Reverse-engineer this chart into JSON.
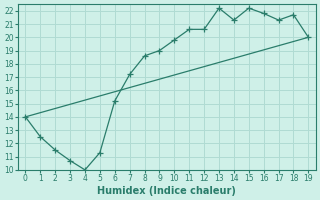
{
  "xlabel": "Humidex (Indice chaleur)",
  "line1_x": [
    0,
    1,
    2,
    3,
    4,
    5,
    6,
    7,
    8,
    9,
    10,
    11,
    12,
    13,
    14,
    15,
    16,
    17,
    18,
    19
  ],
  "line1_y": [
    14,
    12.5,
    11.5,
    10.7,
    10.0,
    11.3,
    15.2,
    17.2,
    18.6,
    19.0,
    19.8,
    20.6,
    20.6,
    22.2,
    21.3,
    22.2,
    21.8,
    21.3,
    21.7,
    20.0
  ],
  "line2_x": [
    0,
    19
  ],
  "line2_y": [
    14,
    20.0
  ],
  "line_color": "#2a7d6b",
  "marker": "+",
  "marker_size": 4,
  "bg_color": "#cff0e8",
  "grid_color": "#b0dbd3",
  "xlim": [
    -0.5,
    19.5
  ],
  "ylim": [
    10,
    22.5
  ],
  "xticks": [
    0,
    1,
    2,
    3,
    4,
    5,
    6,
    7,
    8,
    9,
    10,
    11,
    12,
    13,
    14,
    15,
    16,
    17,
    18,
    19
  ],
  "yticks": [
    10,
    11,
    12,
    13,
    14,
    15,
    16,
    17,
    18,
    19,
    20,
    21,
    22
  ],
  "tick_labelsize": 5.5,
  "xlabel_fontsize": 7
}
